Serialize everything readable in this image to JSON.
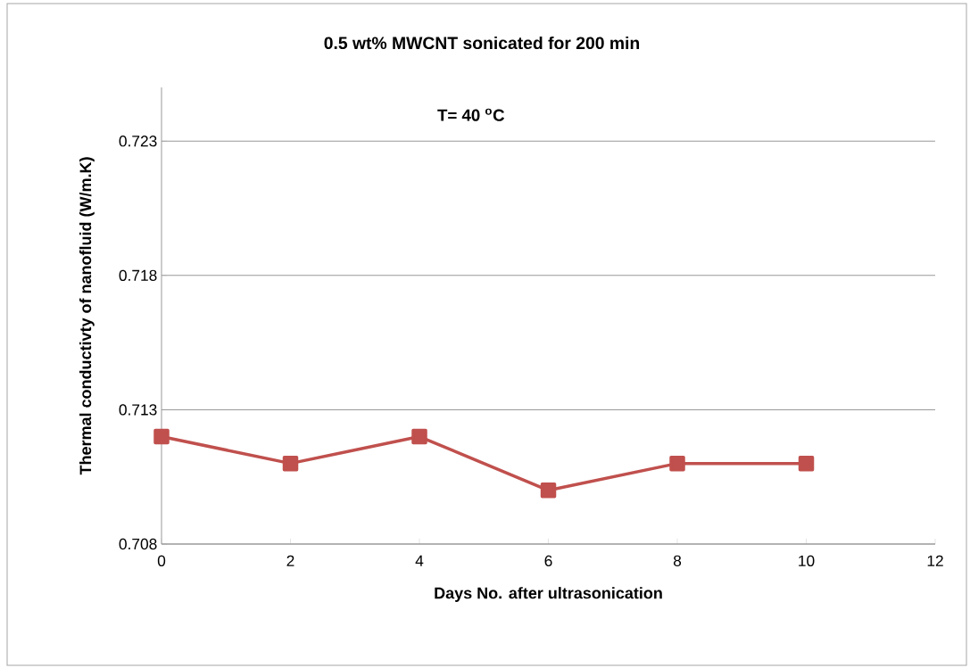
{
  "chart_data": {
    "type": "line",
    "title": "0.5 wt% MWCNT sonicated for 200 min",
    "xlabel": "Days No. after ultrasonication",
    "ylabel": "Thermal conductivty of nanofluid (W/m.K)",
    "annotations": [
      "T= 40 $^{o}$C"
    ],
    "x": [
      0,
      2,
      4,
      6,
      8,
      10
    ],
    "series": [
      {
        "color": "#c0504d",
        "values": [
          0.712,
          0.711,
          0.712,
          0.71,
          0.711,
          0.711
        ]
      }
    ],
    "xlim": [
      0,
      12
    ],
    "xticks": [
      0,
      2,
      4,
      6,
      8,
      10,
      12
    ],
    "ylim": [
      0.708,
      0.725
    ],
    "yticks": [
      0.708,
      0.713,
      0.718,
      0.723
    ],
    "grid": "y",
    "marker": "square",
    "line_style": "solid"
  }
}
